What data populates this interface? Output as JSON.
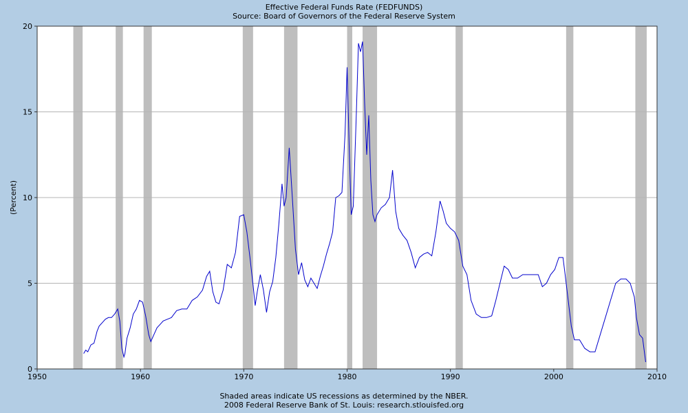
{
  "header": {
    "title": "Effective Federal Funds Rate (FEDFUNDS)",
    "subtitle": "Source: Board of Governors of the Federal Reserve System"
  },
  "footer": {
    "note": "Shaded areas indicate US recessions as determined by the NBER.",
    "copyright": "2008 Federal Reserve Bank of St. Louis: research.stlouisfed.org"
  },
  "colors": {
    "background": "#b3cde4",
    "plot": "#ffffff",
    "line": "#0000cc",
    "recession": "#bebebe",
    "grid": "#b4b4b4"
  },
  "chart_data": {
    "type": "line",
    "title": "Effective Federal Funds Rate (FEDFUNDS)",
    "subtitle": "Source: Board of Governors of the Federal Reserve System",
    "xlabel": "",
    "ylabel": "(Percent)",
    "xlim": [
      1950,
      2010
    ],
    "ylim": [
      0,
      20
    ],
    "x_ticks": [
      1950,
      1960,
      1970,
      1980,
      1990,
      2000,
      2010
    ],
    "y_ticks": [
      0,
      5,
      10,
      15,
      20
    ],
    "grid": "horizontal",
    "recessions": [
      [
        1953.5,
        1954.4
      ],
      [
        1957.6,
        1958.3
      ],
      [
        1960.3,
        1961.1
      ],
      [
        1969.9,
        1970.9
      ],
      [
        1973.9,
        1975.2
      ],
      [
        1980.0,
        1980.5
      ],
      [
        1981.5,
        1982.9
      ],
      [
        1990.5,
        1991.2
      ],
      [
        2001.2,
        2001.9
      ],
      [
        2007.9,
        2009.0
      ]
    ],
    "series": [
      {
        "x": [
          1954.5,
          1954.7,
          1954.9,
          1955.2,
          1955.5,
          1955.8,
          1956.0,
          1956.3,
          1956.6,
          1956.9,
          1957.2,
          1957.5,
          1957.8,
          1958.0,
          1958.2,
          1958.4,
          1958.5,
          1958.7,
          1959.0,
          1959.3,
          1959.6,
          1959.9,
          1960.2,
          1960.5,
          1960.8,
          1961.0,
          1961.3,
          1961.6,
          1961.9,
          1962.2,
          1962.6,
          1963.0,
          1963.5,
          1964.0,
          1964.5,
          1965.0,
          1965.5,
          1966.0,
          1966.4,
          1966.7,
          1967.0,
          1967.3,
          1967.6,
          1968.0,
          1968.4,
          1968.8,
          1969.2,
          1969.6,
          1970.0,
          1970.3,
          1970.6,
          1970.9,
          1971.1,
          1971.3,
          1971.6,
          1971.9,
          1972.2,
          1972.5,
          1972.8,
          1973.1,
          1973.4,
          1973.7,
          1973.9,
          1974.1,
          1974.4,
          1974.7,
          1975.0,
          1975.3,
          1975.6,
          1975.9,
          1976.2,
          1976.5,
          1976.8,
          1977.1,
          1977.4,
          1977.7,
          1978.0,
          1978.3,
          1978.6,
          1978.9,
          1979.2,
          1979.5,
          1979.8,
          1980.0,
          1980.2,
          1980.4,
          1980.6,
          1980.9,
          1981.1,
          1981.3,
          1981.5,
          1981.7,
          1981.9,
          1982.1,
          1982.3,
          1982.5,
          1982.7,
          1982.9,
          1983.3,
          1983.7,
          1984.1,
          1984.4,
          1984.7,
          1985.0,
          1985.4,
          1985.8,
          1986.2,
          1986.6,
          1987.0,
          1987.4,
          1987.8,
          1988.2,
          1988.6,
          1989.0,
          1989.3,
          1989.6,
          1990.0,
          1990.4,
          1990.8,
          1991.2,
          1991.6,
          1992.0,
          1992.5,
          1993.0,
          1993.5,
          1994.0,
          1994.4,
          1994.8,
          1995.2,
          1995.6,
          1996.0,
          1996.5,
          1997.0,
          1997.5,
          1998.0,
          1998.5,
          1998.9,
          1999.3,
          1999.7,
          2000.1,
          2000.5,
          2000.9,
          2001.1,
          2001.4,
          2001.7,
          2002.0,
          2002.5,
          2003.0,
          2003.5,
          2004.0,
          2004.5,
          2005.0,
          2005.5,
          2006.0,
          2006.5,
          2007.0,
          2007.4,
          2007.8,
          2008.0,
          2008.3,
          2008.6,
          2008.9
        ],
        "y": [
          0.9,
          1.1,
          1.0,
          1.4,
          1.5,
          2.2,
          2.5,
          2.7,
          2.9,
          3.0,
          3.0,
          3.2,
          3.5,
          2.8,
          1.2,
          0.7,
          0.9,
          1.8,
          2.4,
          3.2,
          3.5,
          4.0,
          3.9,
          3.1,
          2.0,
          1.6,
          2.0,
          2.4,
          2.6,
          2.8,
          2.9,
          3.0,
          3.4,
          3.5,
          3.5,
          4.0,
          4.2,
          4.6,
          5.4,
          5.7,
          4.5,
          3.9,
          3.8,
          4.6,
          6.1,
          5.9,
          6.8,
          8.9,
          9.0,
          8.0,
          6.5,
          4.9,
          3.7,
          4.5,
          5.5,
          4.6,
          3.3,
          4.5,
          5.1,
          6.5,
          8.5,
          10.8,
          9.5,
          10.0,
          12.9,
          10.0,
          7.0,
          5.5,
          6.2,
          5.2,
          4.8,
          5.3,
          5.0,
          4.7,
          5.4,
          6.0,
          6.7,
          7.3,
          8.0,
          10.0,
          10.1,
          10.3,
          13.7,
          17.6,
          13.0,
          9.0,
          9.5,
          15.0,
          19.0,
          18.5,
          19.1,
          15.5,
          12.5,
          14.8,
          11.0,
          9.0,
          8.6,
          9.0,
          9.4,
          9.6,
          10.0,
          11.6,
          9.2,
          8.2,
          7.8,
          7.5,
          6.8,
          5.9,
          6.5,
          6.7,
          6.8,
          6.6,
          8.0,
          9.8,
          9.2,
          8.5,
          8.2,
          8.0,
          7.5,
          6.0,
          5.5,
          4.0,
          3.2,
          3.0,
          3.0,
          3.1,
          4.0,
          5.0,
          6.0,
          5.8,
          5.3,
          5.3,
          5.5,
          5.5,
          5.5,
          5.5,
          4.8,
          5.0,
          5.5,
          5.8,
          6.5,
          6.5,
          5.5,
          4.0,
          2.5,
          1.7,
          1.7,
          1.2,
          1.0,
          1.0,
          2.0,
          3.0,
          4.0,
          5.0,
          5.25,
          5.25,
          5.0,
          4.2,
          3.0,
          2.0,
          1.8,
          0.4
        ]
      }
    ]
  }
}
